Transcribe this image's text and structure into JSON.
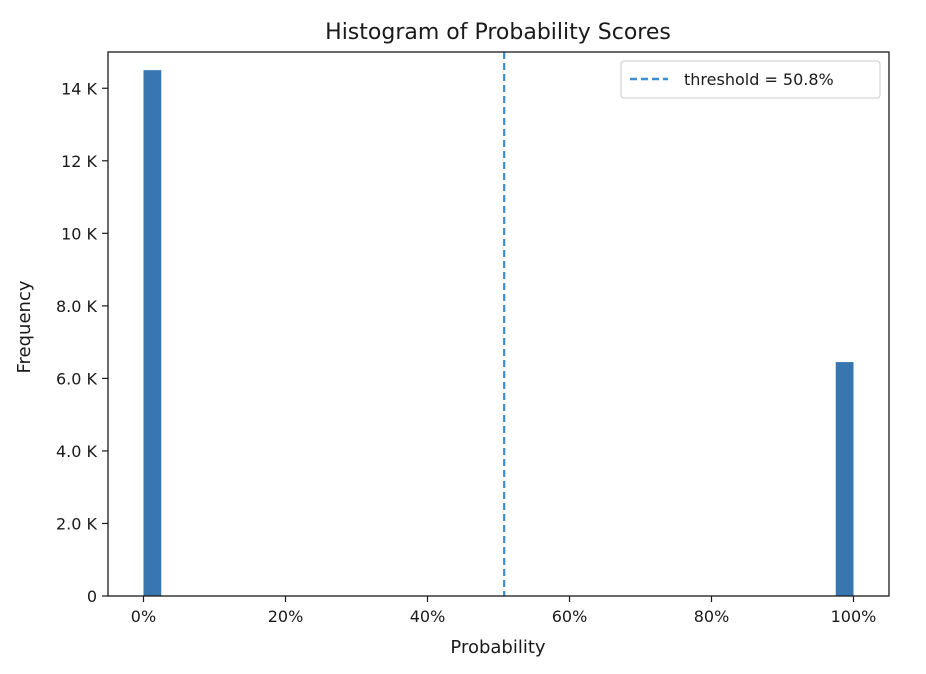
{
  "chart_data": {
    "type": "bar",
    "title": "Histogram of Probability Scores",
    "xlabel": "Probability",
    "ylabel": "Frequency",
    "xlim": [
      -0.05,
      1.05
    ],
    "ylim": [
      0,
      15000
    ],
    "x_ticks": [
      {
        "value": 0.0,
        "label": "0%"
      },
      {
        "value": 0.2,
        "label": "20%"
      },
      {
        "value": 0.4,
        "label": "40%"
      },
      {
        "value": 0.6,
        "label": "60%"
      },
      {
        "value": 0.8,
        "label": "80%"
      },
      {
        "value": 1.0,
        "label": "100%"
      }
    ],
    "y_ticks": [
      {
        "value": 0,
        "label": "0"
      },
      {
        "value": 2000,
        "label": "2.0 K"
      },
      {
        "value": 4000,
        "label": "4.0 K"
      },
      {
        "value": 6000,
        "label": "6.0 K"
      },
      {
        "value": 8000,
        "label": "8.0 K"
      },
      {
        "value": 10000,
        "label": "10 K"
      },
      {
        "value": 12000,
        "label": "12 K"
      },
      {
        "value": 14000,
        "label": "14 K"
      }
    ],
    "bins": [
      {
        "start": 0.0,
        "end": 0.025,
        "count": 14500
      },
      {
        "start": 0.975,
        "end": 1.0,
        "count": 6450
      }
    ],
    "bar_color": "#3776b0",
    "threshold": {
      "value": 0.508,
      "label": "threshold = 50.8%",
      "color": "#3b8ed0",
      "style": "dashed"
    },
    "legend": {
      "position": "top-right"
    },
    "grid": false
  }
}
